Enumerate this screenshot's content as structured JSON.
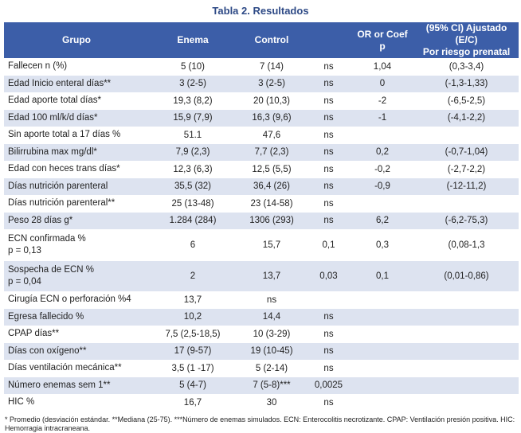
{
  "title": "Tabla 2. Resultados",
  "headers": {
    "grupo": "Grupo",
    "enema": "Enema",
    "control": "Control",
    "p": "",
    "or_line1": "OR or Coef",
    "or_line2": "p",
    "ci_line1": "(95% CI) Ajustado (E/C)",
    "ci_line2": "Por riesgo prenatal"
  },
  "rows": [
    {
      "label": "Fallecen n (%)",
      "label2": "",
      "enema": "5 (10)",
      "control": "7 (14)",
      "p": "ns",
      "or": "1,04",
      "ci": "(0,3-3,4)"
    },
    {
      "label": "Edad Inicio enteral días**",
      "label2": "",
      "enema": "3 (2-5)",
      "control": "3 (2-5)",
      "p": "ns",
      "or": "0",
      "ci": "(-1,3-1,33)"
    },
    {
      "label": "Edad aporte total días*",
      "label2": "",
      "enema": "19,3 (8,2)",
      "control": "20 (10,3)",
      "p": "ns",
      "or": "-2",
      "ci": "(-6,5-2,5)"
    },
    {
      "label": "Edad 100 ml/k/d días*",
      "label2": "",
      "enema": "15,9 (7,9)",
      "control": "16,3 (9,6)",
      "p": "ns",
      "or": "-1",
      "ci": "(-4,1-2,2)"
    },
    {
      "label": "Sin aporte total a 17 días %",
      "label2": "",
      "enema": "51.1",
      "control": "47,6",
      "p": "ns",
      "or": "",
      "ci": ""
    },
    {
      "label": "Bilirrubina max mg/dl*",
      "label2": "",
      "enema": "7,9 (2,3)",
      "control": "7,7 (2,3)",
      "p": "ns",
      "or": "0,2",
      "ci": "(-0,7-1,04)"
    },
    {
      "label": "Edad con heces trans días*",
      "label2": "",
      "enema": "12,3 (6,3)",
      "control": "12,5 (5,5)",
      "p": "ns",
      "or": "-0,2",
      "ci": "(-2,7-2,2)"
    },
    {
      "label": "Días nutrición parenteral",
      "label2": "",
      "enema": "35,5 (32)",
      "control": "36,4 (26)",
      "p": "ns",
      "or": "-0,9",
      "ci": "(-12-11,2)"
    },
    {
      "label": "Días nutrición parenteral**",
      "label2": "",
      "enema": "25 (13-48)",
      "control": "23 (14-58)",
      "p": "ns",
      "or": "",
      "ci": ""
    },
    {
      "label": "Peso 28 días g*",
      "label2": "",
      "enema": "1.284 (284)",
      "control": "1306 (293)",
      "p": "ns",
      "or": "6,2",
      "ci": "(-6,2-75,3)"
    },
    {
      "label": "ECN confirmada %",
      "label2": "p = 0,13",
      "enema": "6",
      "control": "15,7",
      "p": "0,1",
      "or": "0,3",
      "ci": "(0,08-1,3"
    },
    {
      "label": "Sospecha de ECN %",
      "label2": "p = 0,04",
      "enema": "2",
      "control": "13,7",
      "p": "0,03",
      "or": "0,1",
      "ci": "(0,01-0,86)"
    },
    {
      "label": "Cirugía ECN o perforación %4",
      "label2": "",
      "enema": "13,7",
      "control": "ns",
      "p": "",
      "or": "",
      "ci": ""
    },
    {
      "label": "Egresa fallecido %",
      "label2": "",
      "enema": "10,2",
      "control": "14,4",
      "p": "ns",
      "or": "",
      "ci": ""
    },
    {
      "label": "CPAP días**",
      "label2": "",
      "enema": "7,5 (2,5-18,5)",
      "control": "10 (3-29)",
      "p": "ns",
      "or": "",
      "ci": ""
    },
    {
      "label": "Días con oxígeno**",
      "label2": "",
      "enema": "17 (9-57)",
      "control": "19 (10-45)",
      "p": "ns",
      "or": "",
      "ci": ""
    },
    {
      "label": "Días ventilación mecánica**",
      "label2": "",
      "enema": "3,5 (1 -17)",
      "control": "5 (2-14)",
      "p": "ns",
      "or": "",
      "ci": ""
    },
    {
      "label": "Número enemas sem 1**",
      "label2": "",
      "enema": "5 (4-7)",
      "control": "7 (5-8)***",
      "p": "0,0025",
      "or": "",
      "ci": ""
    },
    {
      "label": "HIC %",
      "label2": "",
      "enema": "16,7",
      "control": "30",
      "p": "ns",
      "or": "",
      "ci": ""
    }
  ],
  "footnote": "* Promedio (desviación estándar. **Mediana (25-75). ***Número de enemas simulados. ECN: Enterocolitis necrotizante. CPAP: Ventilación presión positiva. HIC: Hemorragia intracraneana."
}
